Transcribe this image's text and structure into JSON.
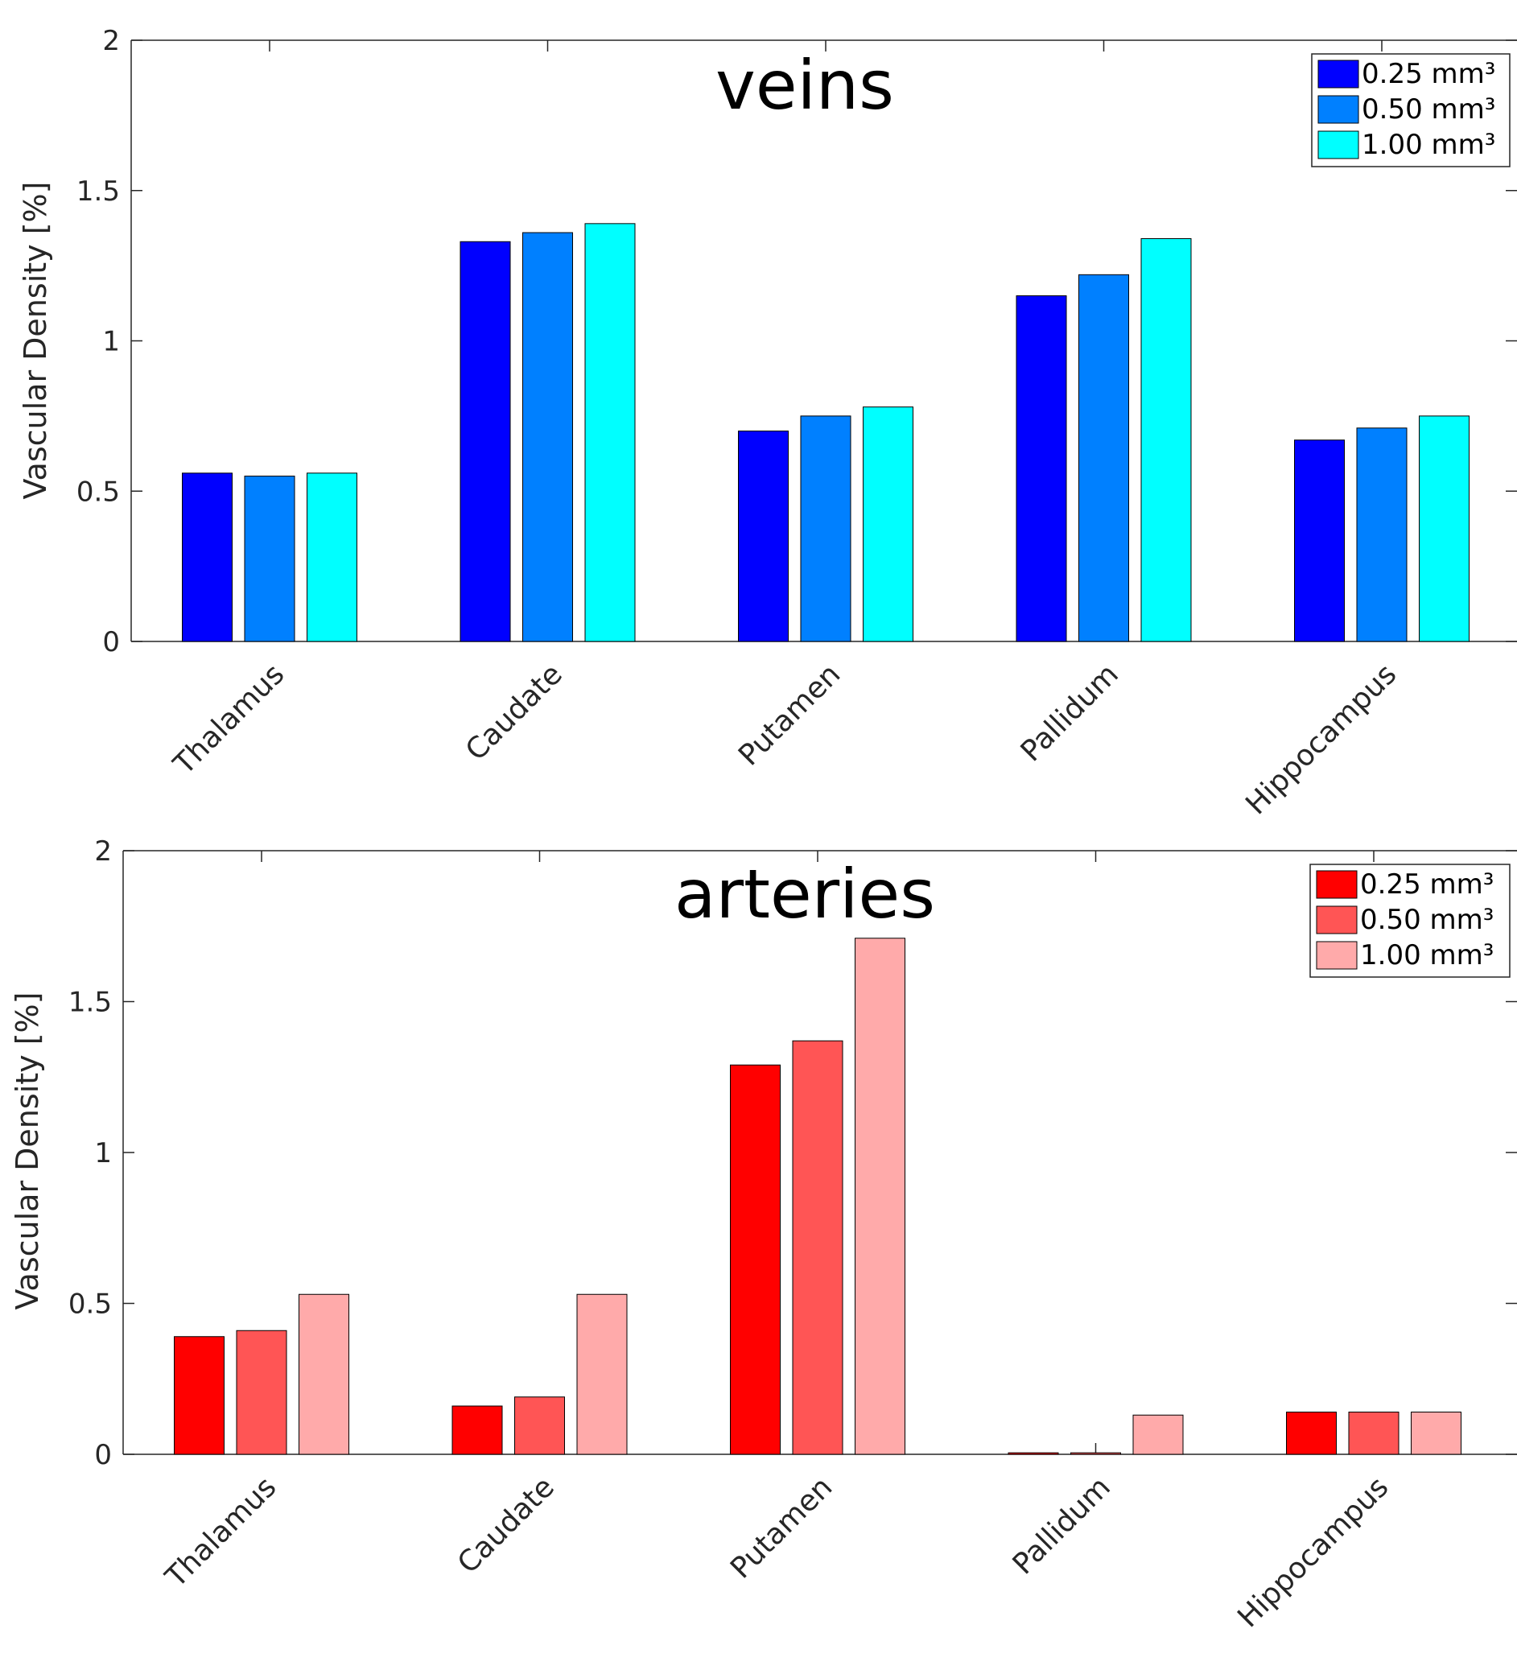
{
  "chart_data": [
    {
      "type": "bar",
      "title": "veins",
      "xlabel": "",
      "ylabel": "Vascular Density [%]",
      "ylim": [
        0,
        2
      ],
      "yticks": [
        "0",
        "0.5",
        "1",
        "1.5",
        "2"
      ],
      "categories": [
        "Thalamus",
        "Caudate",
        "Putamen",
        "Pallidum",
        "Hippocampus"
      ],
      "legend_position": "top-right",
      "series": [
        {
          "name": "0.25 mm³",
          "color": "#0000FF",
          "values": [
            0.56,
            1.33,
            0.7,
            1.15,
            0.67
          ]
        },
        {
          "name": "0.50 mm³",
          "color": "#0080FF",
          "values": [
            0.55,
            1.36,
            0.75,
            1.22,
            0.71
          ]
        },
        {
          "name": "1.00 mm³",
          "color": "#00FFFF",
          "values": [
            0.56,
            1.39,
            0.78,
            1.34,
            0.75
          ]
        }
      ]
    },
    {
      "type": "bar",
      "title": "arteries",
      "xlabel": "",
      "ylabel": "Vascular Density [%]",
      "ylim": [
        0,
        2
      ],
      "yticks": [
        "0",
        "0.5",
        "1",
        "1.5",
        "2"
      ],
      "categories": [
        "Thalamus",
        "Caudate",
        "Putamen",
        "Pallidum",
        "Hippocampus"
      ],
      "legend_position": "top-right",
      "series": [
        {
          "name": "0.25 mm³",
          "color": "#FF0000",
          "values": [
            0.39,
            0.16,
            1.29,
            0.005,
            0.14
          ]
        },
        {
          "name": "0.50 mm³",
          "color": "#FF5555",
          "values": [
            0.41,
            0.19,
            1.37,
            0.005,
            0.14
          ]
        },
        {
          "name": "1.00 mm³",
          "color": "#FFAAAA",
          "values": [
            0.53,
            0.53,
            1.71,
            0.13,
            0.14
          ]
        }
      ]
    }
  ]
}
